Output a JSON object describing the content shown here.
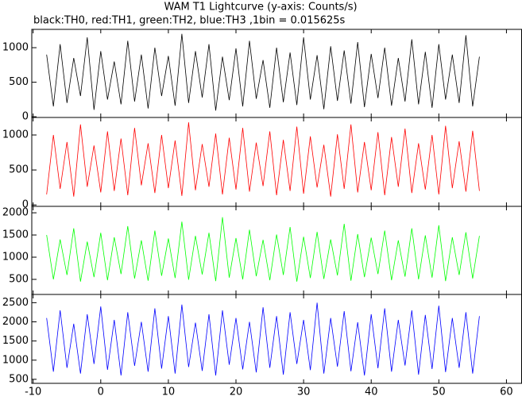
{
  "chart_data": [
    {
      "type": "line",
      "title": "WAM T1 Lightcurve (y-axis: Counts/s)",
      "subtitle": "black:TH0, red:TH1, green:TH2, blue:TH3 ,1bin = 0.015625s",
      "x": [
        -8,
        -7,
        -6,
        -5,
        -4,
        -3,
        -2,
        -1,
        0,
        1,
        2,
        3,
        4,
        5,
        6,
        7,
        8,
        9,
        10,
        11,
        12,
        13,
        14,
        15,
        16,
        17,
        18,
        19,
        20,
        21,
        22,
        23,
        24,
        25,
        26,
        27,
        28,
        29,
        30,
        31,
        32,
        33,
        34,
        35,
        36,
        37,
        38,
        39,
        40,
        41,
        42,
        43,
        44,
        45,
        46,
        47,
        48,
        49,
        50,
        51,
        52,
        53,
        54,
        55,
        56
      ],
      "series": [
        {
          "color": "#000000",
          "values": [
            900,
            150,
            1050,
            200,
            850,
            300,
            1150,
            100,
            950,
            250,
            800,
            180,
            1100,
            220,
            900,
            120,
            1000,
            300,
            880,
            160,
            1200,
            200,
            950,
            280,
            1050,
            90,
            870,
            240,
            990,
            150,
            1100,
            260,
            820,
            130,
            1000,
            210,
            930,
            170,
            1150,
            250,
            890,
            110,
            1020,
            230,
            960,
            190,
            1080,
            140,
            910,
            270,
            1000,
            160,
            850,
            220,
            1120,
            180,
            940,
            130,
            1050,
            250,
            900,
            200,
            1180,
            150,
            870
          ]
        }
      ],
      "xlim": [
        -10.2,
        62.3
      ],
      "ylim": [
        -10,
        1265
      ],
      "yticks": [
        0,
        500,
        1000
      ]
    },
    {
      "type": "line",
      "x": [
        -8,
        -7,
        -6,
        -5,
        -4,
        -3,
        -2,
        -1,
        0,
        1,
        2,
        3,
        4,
        5,
        6,
        7,
        8,
        9,
        10,
        11,
        12,
        13,
        14,
        15,
        16,
        17,
        18,
        19,
        20,
        21,
        22,
        23,
        24,
        25,
        26,
        27,
        28,
        29,
        30,
        31,
        32,
        33,
        34,
        35,
        36,
        37,
        38,
        39,
        40,
        41,
        42,
        43,
        44,
        45,
        46,
        47,
        48,
        49,
        50,
        51,
        52,
        53,
        54,
        55,
        56
      ],
      "series": [
        {
          "color": "#ff0000",
          "values": [
            150,
            1000,
            230,
            900,
            120,
            1150,
            260,
            850,
            180,
            1050,
            200,
            950,
            140,
            1100,
            280,
            880,
            170,
            1000,
            240,
            920,
            130,
            1180,
            210,
            870,
            260,
            1020,
            150,
            960,
            220,
            1100,
            190,
            890,
            270,
            1050,
            140,
            930,
            200,
            1120,
            160,
            980,
            250,
            860,
            120,
            1010,
            230,
            1150,
            180,
            900,
            210,
            1040,
            140,
            970,
            260,
            1090,
            170,
            880,
            220,
            1000,
            150,
            1130,
            240,
            910,
            190,
            1060,
            200
          ]
        }
      ],
      "xlim": [
        -10.2,
        62.3
      ],
      "ylim": [
        -20,
        1250
      ],
      "yticks": [
        0,
        500,
        1000
      ]
    },
    {
      "type": "line",
      "x": [
        -8,
        -7,
        -6,
        -5,
        -4,
        -3,
        -2,
        -1,
        0,
        1,
        2,
        3,
        4,
        5,
        6,
        7,
        8,
        9,
        10,
        11,
        12,
        13,
        14,
        15,
        16,
        17,
        18,
        19,
        20,
        21,
        22,
        23,
        24,
        25,
        26,
        27,
        28,
        29,
        30,
        31,
        32,
        33,
        34,
        35,
        36,
        37,
        38,
        39,
        40,
        41,
        42,
        43,
        44,
        45,
        46,
        47,
        48,
        49,
        50,
        51,
        52,
        53,
        54,
        55,
        56
      ],
      "series": [
        {
          "color": "#00ff00",
          "values": [
            1500,
            500,
            1400,
            600,
            1650,
            450,
            1350,
            550,
            1550,
            480,
            1450,
            620,
            1700,
            520,
            1380,
            470,
            1600,
            580,
            1420,
            530,
            1800,
            490,
            1480,
            610,
            1550,
            460,
            1900,
            540,
            1430,
            500,
            1620,
            570,
            1390,
            480,
            1510,
            600,
            1680,
            450,
            1460,
            530,
            1570,
            510,
            1400,
            590,
            1750,
            470,
            1520,
            550,
            1440,
            620,
            1600,
            480,
            1380,
            560,
            1650,
            500,
            1490,
            540,
            1720,
            460,
            1450,
            600,
            1560,
            520,
            1480
          ]
        }
      ],
      "xlim": [
        -10.2,
        62.3
      ],
      "ylim": [
        160,
        2145
      ],
      "yticks": [
        500,
        1000,
        1500,
        2000
      ]
    },
    {
      "type": "line",
      "x": [
        -8,
        -7,
        -6,
        -5,
        -4,
        -3,
        -2,
        -1,
        0,
        1,
        2,
        3,
        4,
        5,
        6,
        7,
        8,
        9,
        10,
        11,
        12,
        13,
        14,
        15,
        16,
        17,
        18,
        19,
        20,
        21,
        22,
        23,
        24,
        25,
        26,
        27,
        28,
        29,
        30,
        31,
        32,
        33,
        34,
        35,
        36,
        37,
        38,
        39,
        40,
        41,
        42,
        43,
        44,
        45,
        46,
        47,
        48,
        49,
        50,
        51,
        52,
        53,
        54,
        55,
        56
      ],
      "series": [
        {
          "color": "#0000ff",
          "values": [
            2100,
            700,
            2300,
            800,
            1950,
            650,
            2200,
            900,
            2400,
            750,
            2050,
            600,
            2250,
            850,
            2000,
            700,
            2350,
            780,
            2150,
            650,
            2450,
            820,
            1980,
            720,
            2200,
            600,
            2300,
            880,
            2100,
            760,
            2000,
            680,
            2380,
            800,
            2150,
            620,
            2250,
            900,
            2050,
            740,
            2500,
            650,
            2100,
            830,
            2280,
            710,
            1990,
            600,
            2200,
            790,
            2350,
            700,
            2050,
            860,
            2300,
            620,
            2180,
            770,
            2420,
            690,
            2100,
            800,
            2250,
            650,
            2150
          ]
        }
      ],
      "xlim": [
        -10.2,
        62.3
      ],
      "ylim": [
        395,
        2715
      ],
      "yticks": [
        500,
        1000,
        1500,
        2000,
        2500
      ],
      "xticks": [
        -10,
        0,
        10,
        20,
        30,
        40,
        50,
        60
      ]
    }
  ]
}
